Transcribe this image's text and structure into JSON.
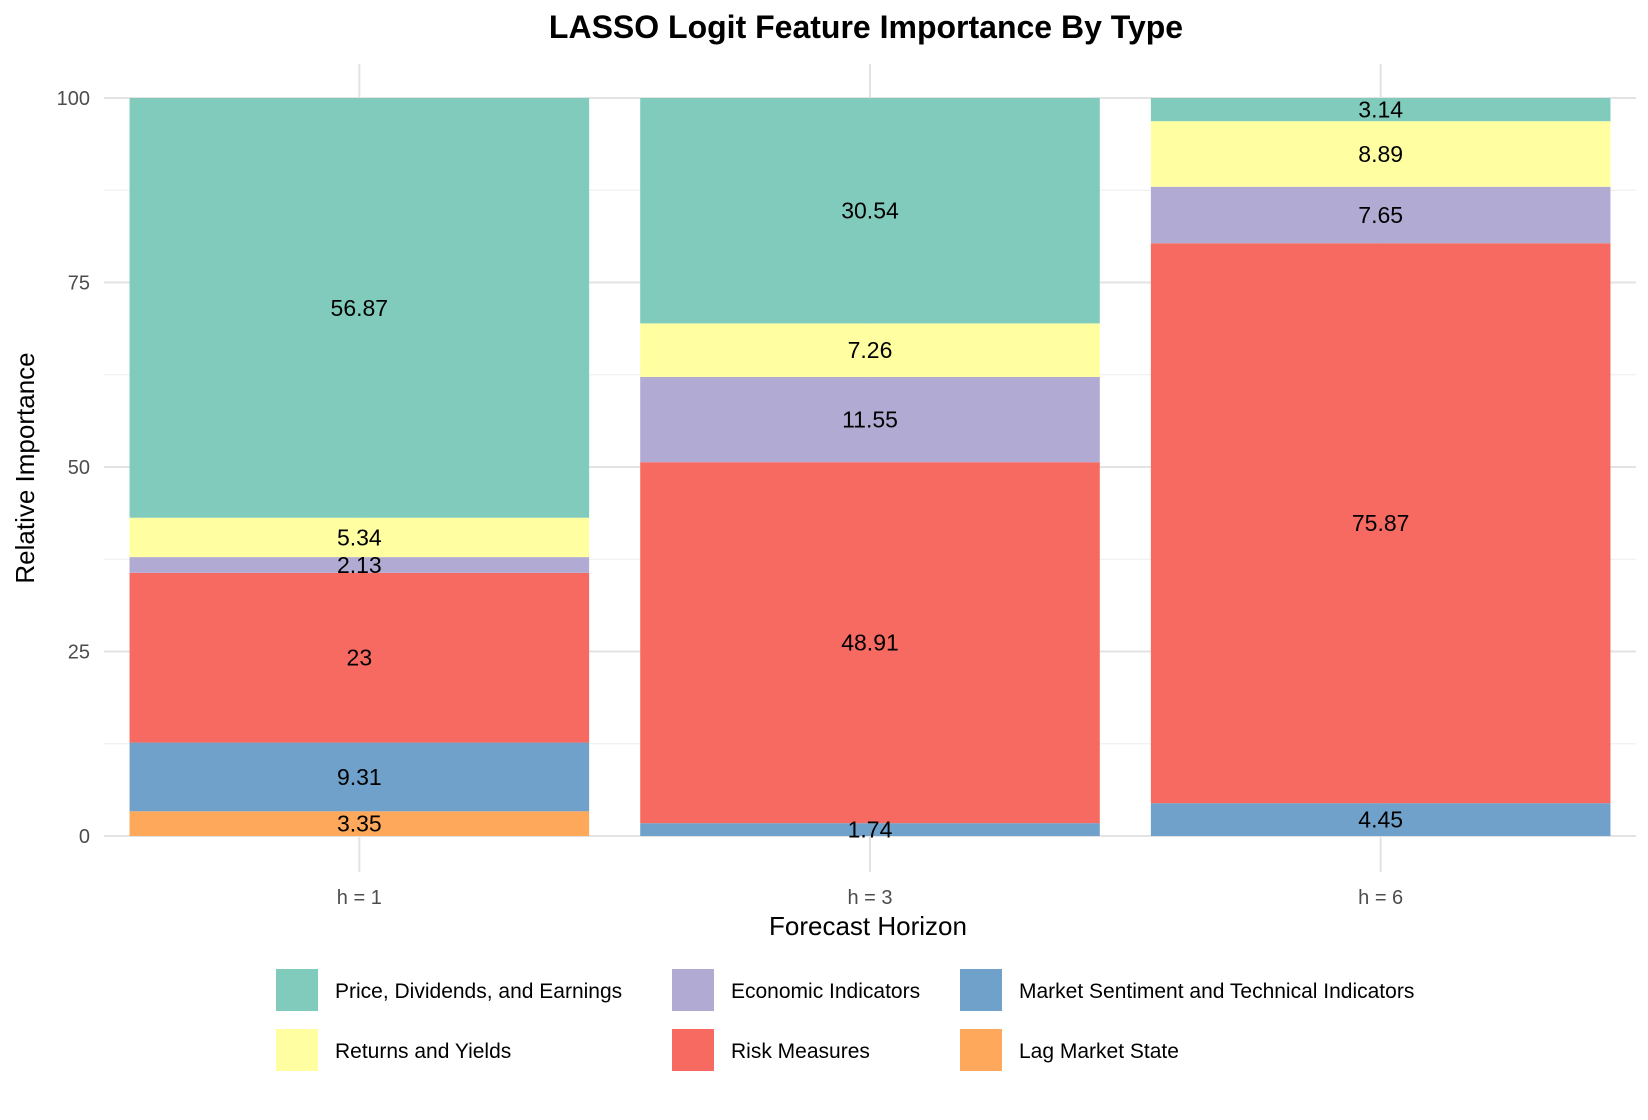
{
  "chart_data": {
    "type": "bar",
    "stacked": true,
    "title": "LASSO Logit Feature Importance By Type",
    "xlabel": "Forecast Horizon",
    "ylabel": "Relative Importance",
    "categories": [
      "h = 1",
      "h = 3",
      "h = 6"
    ],
    "ylim": [
      0,
      100
    ],
    "yticks": [
      0,
      25,
      50,
      75,
      100
    ],
    "grid": true,
    "legend_position": "bottom",
    "series": [
      {
        "name": "Lag Market State",
        "color": "#FDA85A",
        "values": [
          3.35,
          0,
          0
        ],
        "labels": [
          "3.35",
          "",
          ""
        ]
      },
      {
        "name": "Market Sentiment and Technical Indicators",
        "color": "#6FA1CA",
        "values": [
          9.31,
          1.74,
          4.45
        ],
        "labels": [
          "9.31",
          "1.74",
          "4.45"
        ]
      },
      {
        "name": "Risk Measures",
        "color": "#F76A61",
        "values": [
          23,
          48.91,
          75.87
        ],
        "labels": [
          "23",
          "48.91",
          "75.87"
        ]
      },
      {
        "name": "Economic Indicators",
        "color": "#B1AAD2",
        "values": [
          2.13,
          11.55,
          7.65
        ],
        "labels": [
          "2.13",
          "11.55",
          "7.65"
        ]
      },
      {
        "name": "Returns and Yields",
        "color": "#FFFFA2",
        "values": [
          5.34,
          7.26,
          8.89
        ],
        "labels": [
          "5.34",
          "7.26",
          "8.89"
        ]
      },
      {
        "name": "Price, Dividends, and Earnings",
        "color": "#80CBBC",
        "values": [
          56.87,
          30.54,
          3.14
        ],
        "labels": [
          "56.87",
          "30.54",
          "3.14"
        ]
      }
    ],
    "legend_order": [
      "Price, Dividends, and Earnings",
      "Economic Indicators",
      "Market Sentiment and Technical Indicators",
      "Returns and Yields",
      "Risk Measures",
      "Lag Market State"
    ]
  }
}
